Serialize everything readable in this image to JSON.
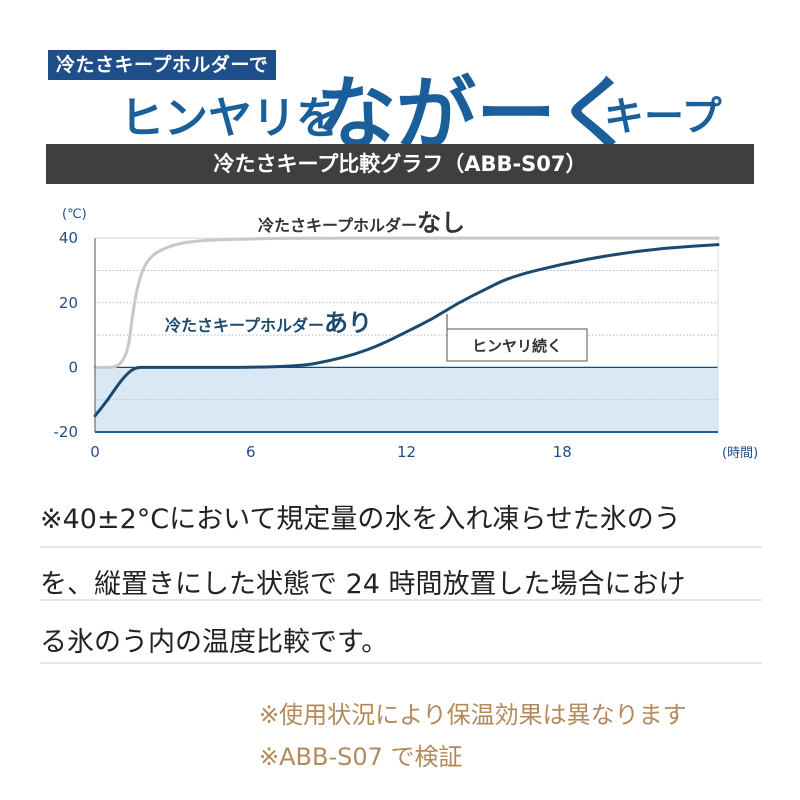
{
  "header": {
    "tagline": "冷たさキープホルダーで",
    "headline_part1": "ヒンヤリを",
    "headline_part2": "ながーく",
    "headline_part3": "キープ"
  },
  "chart_header": "冷たさキープ比較グラフ（ABB-S07）",
  "chart_data": {
    "type": "line",
    "title": "冷たさキープ比較グラフ（ABB-S07）",
    "xlabel": "(時間)",
    "ylabel": "(℃)",
    "xlim": [
      0,
      24
    ],
    "ylim": [
      -20,
      45
    ],
    "x_ticks": [
      "0",
      "6",
      "12",
      "18"
    ],
    "y_ticks": [
      "40",
      "20",
      "0",
      "-20"
    ],
    "grid": true,
    "series": [
      {
        "name": "冷たさキープホルダーなし",
        "color": "#c8c8c8",
        "x": [
          0,
          1.2,
          1.5,
          1.8,
          2.2,
          3,
          4,
          6,
          8,
          12,
          16,
          20,
          24
        ],
        "y": [
          0,
          0,
          20,
          30,
          35,
          38,
          39.3,
          39.8,
          40,
          40,
          40,
          40,
          40
        ]
      },
      {
        "name": "冷たさキープホルダーあり",
        "color": "#1a4a70",
        "x": [
          0,
          0.5,
          1,
          1.5,
          2,
          4,
          6,
          8,
          9,
          10,
          11,
          12,
          13,
          14,
          15,
          16,
          18,
          20,
          22,
          24
        ],
        "y": [
          -15,
          -10,
          -4,
          0,
          0,
          0,
          0,
          0.5,
          2,
          4,
          7,
          11,
          15,
          20,
          24,
          28,
          32,
          35,
          37,
          38
        ]
      }
    ],
    "band": {
      "from": -20,
      "to": 0,
      "color": "#dae8f6"
    },
    "annotations": [
      {
        "text": "冷たさキープホルダー",
        "emphasis": "なし"
      },
      {
        "text": "冷たさキープホルダー",
        "emphasis": "あり"
      },
      {
        "text": "ヒンヤリ続く"
      }
    ]
  },
  "notes": {
    "line1": "※40±2°Cにおいて規定量の水を入れ凍らせた氷のう",
    "line2": "を、縦置きにした状態で 24 時間放置した場合におけ",
    "line3": "る氷のう内の温度比較です。",
    "sub1": "※使用状況により保温効果は異なります",
    "sub2": "※ABB-S07 で検証"
  },
  "colors": {
    "accent": "#1a5f99",
    "tag_bg": "#1f4f8a",
    "header_bar": "#3f3f3f",
    "note_sub": "#b58a5a"
  }
}
